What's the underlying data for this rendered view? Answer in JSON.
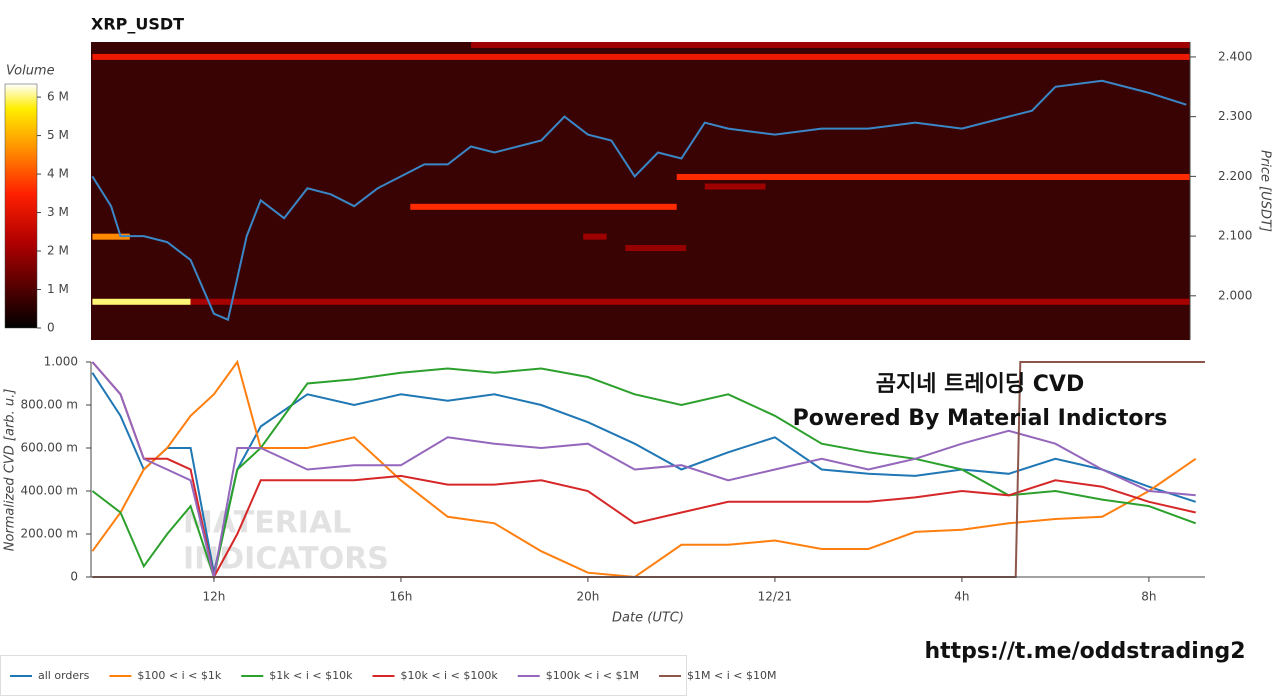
{
  "chart_data": [
    {
      "type": "heatmap",
      "title": "XRP_USDT",
      "y_label": "Price [USDT]",
      "xlim": [
        9.37,
        32.88
      ],
      "ylim": [
        1.926,
        2.425
      ],
      "yticks": [
        {
          "value": 2.0,
          "label": "2.000"
        },
        {
          "value": 2.1,
          "label": "2.100"
        },
        {
          "value": 2.2,
          "label": "2.200"
        },
        {
          "value": 2.3,
          "label": "2.300"
        },
        {
          "value": 2.4,
          "label": "2.400"
        }
      ],
      "colorbar": {
        "label": "Volume",
        "lim": [
          0,
          6340000
        ],
        "ticks": [
          0,
          {
            "value": 1000000,
            "label": "1 M"
          },
          {
            "value": 2000000,
            "label": "2 M"
          },
          {
            "value": 3000000,
            "label": "3 M"
          },
          {
            "value": 4000000,
            "label": "4 M"
          },
          {
            "value": 5000000,
            "label": "5 M"
          },
          {
            "value": 6000000,
            "label": "6 M"
          }
        ]
      },
      "levels": [
        {
          "price": 2.4,
          "start": 9.4,
          "end": 32.88,
          "volume": 3200000
        },
        {
          "price": 2.42,
          "start": 17.5,
          "end": 32.88,
          "volume": 2000000
        },
        {
          "price": 1.99,
          "start": 9.4,
          "end": 11.5,
          "volume": 6000000
        },
        {
          "price": 1.99,
          "start": 11.5,
          "end": 32.88,
          "volume": 2100000
        },
        {
          "price": 2.099,
          "start": 9.4,
          "end": 10.2,
          "volume": 4600000
        },
        {
          "price": 2.149,
          "start": 16.2,
          "end": 21.9,
          "volume": 3600000
        },
        {
          "price": 2.199,
          "start": 21.9,
          "end": 32.88,
          "volume": 3600000
        },
        {
          "price": 2.183,
          "start": 22.5,
          "end": 23.8,
          "volume": 2000000
        },
        {
          "price": 2.099,
          "start": 19.9,
          "end": 20.4,
          "volume": 2000000
        },
        {
          "price": 2.08,
          "start": 20.8,
          "end": 22.1,
          "volume": 1900000
        }
      ],
      "price": {
        "color": "#3a87c8",
        "x": [
          9.4,
          9.8,
          10,
          10.5,
          11,
          11.5,
          12,
          12.3,
          12.7,
          13,
          13.5,
          14,
          14.5,
          15,
          15.5,
          16,
          16.5,
          17,
          17.5,
          18,
          18.5,
          19,
          19.5,
          20,
          20.5,
          21,
          21.5,
          22,
          22.5,
          23,
          24,
          25,
          26,
          27,
          28,
          29,
          29.5,
          30,
          31,
          32,
          32.8
        ],
        "values": [
          2.2,
          2.15,
          2.1,
          2.1,
          2.09,
          2.06,
          1.97,
          1.96,
          2.1,
          2.16,
          2.13,
          2.18,
          2.17,
          2.15,
          2.18,
          2.2,
          2.22,
          2.22,
          2.25,
          2.24,
          2.25,
          2.26,
          2.3,
          2.27,
          2.26,
          2.2,
          2.24,
          2.23,
          2.29,
          2.28,
          2.27,
          2.28,
          2.28,
          2.29,
          2.28,
          2.3,
          2.31,
          2.35,
          2.36,
          2.34,
          2.32
        ]
      }
    },
    {
      "type": "line",
      "x_label": "Date (UTC)",
      "y_label": "Normalized CVD [arb. u.]",
      "xlim": [
        9.37,
        33.2
      ],
      "ylim": [
        0,
        1
      ],
      "xticks": [
        {
          "value": 12,
          "label": "12h"
        },
        {
          "value": 16,
          "label": "16h"
        },
        {
          "value": 20,
          "label": "20h"
        },
        {
          "value": 24,
          "label": "12/21"
        },
        {
          "value": 28,
          "label": "4h"
        },
        {
          "value": 32,
          "label": "8h"
        }
      ],
      "yticks": [
        0,
        {
          "value": 0.2,
          "label": "200.00 m"
        },
        {
          "value": 0.4,
          "label": "400.00 m"
        },
        {
          "value": 0.6,
          "label": "600.00 m"
        },
        {
          "value": 0.8,
          "label": "800.00 m"
        },
        {
          "value": 1,
          "label": "1.000"
        }
      ],
      "annotations": [
        "곰지네 트레이딩 CVD",
        "Powered By Material Indictors"
      ],
      "watermark": [
        "MATERIAL",
        "INDICATORS"
      ],
      "x": [
        9.4,
        10,
        10.5,
        11,
        11.5,
        12,
        12.5,
        13,
        14,
        15,
        16,
        17,
        18,
        19,
        20,
        21,
        22,
        23,
        24,
        25,
        26,
        27,
        28,
        29,
        30,
        31,
        32,
        33
      ],
      "series": [
        {
          "name": "all orders",
          "color": "#1f77b4",
          "values": [
            0.95,
            0.75,
            0.5,
            0.6,
            0.6,
            0.02,
            0.5,
            0.7,
            0.85,
            0.8,
            0.85,
            0.82,
            0.85,
            0.8,
            0.72,
            0.62,
            0.5,
            0.58,
            0.65,
            0.5,
            0.48,
            0.47,
            0.5,
            0.48,
            0.55,
            0.5,
            0.42,
            0.35
          ]
        },
        {
          "name": "$100 < i < $1k",
          "color": "#ff7f0e",
          "values": [
            0.12,
            0.3,
            0.5,
            0.6,
            0.75,
            0.85,
            1.0,
            0.6,
            0.6,
            0.65,
            0.45,
            0.28,
            0.25,
            0.12,
            0.02,
            0.0,
            0.15,
            0.15,
            0.17,
            0.13,
            0.13,
            0.21,
            0.22,
            0.25,
            0.27,
            0.28,
            0.4,
            0.55
          ]
        },
        {
          "name": "$1k < i < $10k",
          "color": "#2ca02c",
          "values": [
            0.4,
            0.3,
            0.05,
            0.2,
            0.33,
            0.0,
            0.5,
            0.6,
            0.9,
            0.92,
            0.95,
            0.97,
            0.95,
            0.97,
            0.93,
            0.85,
            0.8,
            0.85,
            0.75,
            0.62,
            0.58,
            0.55,
            0.5,
            0.38,
            0.4,
            0.36,
            0.33,
            0.25
          ]
        },
        {
          "name": "$10k < i < $100k",
          "color": "#d62728",
          "values": [
            1.0,
            0.85,
            0.55,
            0.55,
            0.5,
            0.0,
            0.2,
            0.45,
            0.45,
            0.45,
            0.47,
            0.43,
            0.43,
            0.45,
            0.4,
            0.25,
            0.3,
            0.35,
            0.35,
            0.35,
            0.35,
            0.37,
            0.4,
            0.38,
            0.45,
            0.42,
            0.35,
            0.3
          ]
        },
        {
          "name": "$100k < i < $1M",
          "color": "#9467bd",
          "values": [
            1.0,
            0.85,
            0.55,
            0.5,
            0.45,
            0.0,
            0.6,
            0.6,
            0.5,
            0.52,
            0.52,
            0.65,
            0.62,
            0.6,
            0.62,
            0.5,
            0.52,
            0.45,
            0.5,
            0.55,
            0.5,
            0.55,
            0.62,
            0.68,
            0.62,
            0.5,
            0.4,
            0.38
          ]
        },
        {
          "name": "$1M < i < $10M",
          "color": "#8c564b",
          "x": [
            9.4,
            29.15,
            29.25,
            33.2
          ],
          "values": [
            0,
            0,
            1,
            1
          ]
        }
      ]
    }
  ],
  "footer_text": "https://t.me/oddstrading2"
}
